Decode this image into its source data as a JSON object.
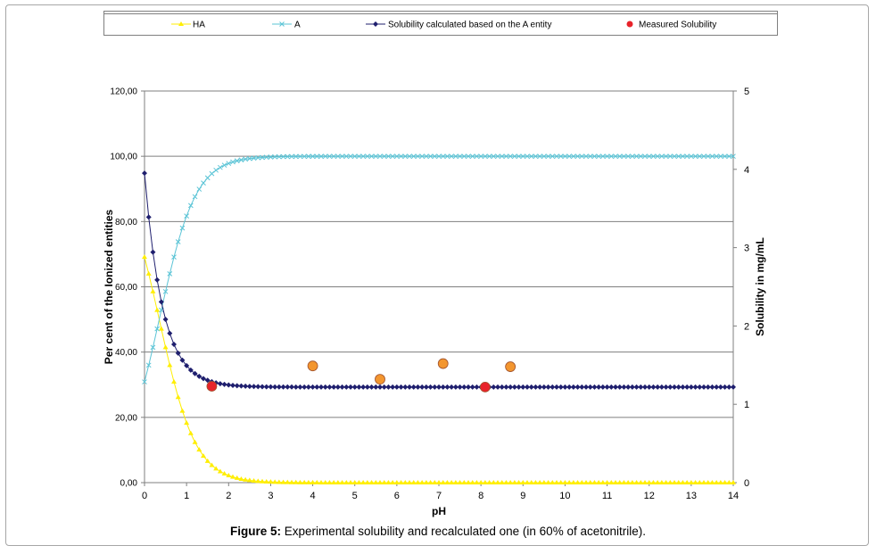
{
  "chart_data": {
    "type": "line",
    "x": {
      "label": "pH",
      "min": 0,
      "max": 14,
      "ticks": [
        "0",
        "1",
        "2",
        "3",
        "4",
        "5",
        "6",
        "7",
        "8",
        "9",
        "10",
        "11",
        "12",
        "13",
        "14"
      ]
    },
    "y_left": {
      "label": "Per cent of the Ionized entities",
      "min": 0,
      "max": 120,
      "ticks": [
        "0,00",
        "20,00",
        "40,00",
        "60,00",
        "80,00",
        "100,00",
        "120,00"
      ]
    },
    "y_right": {
      "label": "Solubility in mg/mL",
      "min": 0,
      "max": 5,
      "ticks": [
        "0",
        "1",
        "2",
        "3",
        "4",
        "5"
      ]
    },
    "grid": "horizontal",
    "legend_position": "top",
    "pKa": 0.35,
    "intrinsic_solubility": 1.22,
    "series": [
      {
        "name": "HA",
        "axis": "left",
        "color": "#ffee00",
        "marker": "triangle",
        "model": "neutral_percent"
      },
      {
        "name": "A",
        "axis": "left",
        "color": "#5bc4d6",
        "marker": "x",
        "model": "ionized_percent"
      },
      {
        "name": "Solubility calculated based on the A entity",
        "axis": "right",
        "color": "#1f1f6e",
        "marker": "diamond",
        "model": "total_solubility"
      },
      {
        "name": "Measured Solubility",
        "axis": "right",
        "color": "#e8232a",
        "marker": "circle",
        "model": "points"
      }
    ],
    "measured_points": [
      {
        "x": 1.6,
        "y": 1.23,
        "color": "#e8232a"
      },
      {
        "x": 4.0,
        "y": 1.49,
        "color": "#f3962f"
      },
      {
        "x": 5.6,
        "y": 1.32,
        "color": "#f3962f"
      },
      {
        "x": 7.1,
        "y": 1.52,
        "color": "#f3962f"
      },
      {
        "x": 8.1,
        "y": 1.22,
        "color": "#e8232a"
      },
      {
        "x": 8.7,
        "y": 1.48,
        "color": "#f3962f"
      }
    ]
  },
  "caption": {
    "label": "Figure 5:",
    "text": " Experimental solubility and recalculated one (in 60% of acetonitrile)."
  }
}
